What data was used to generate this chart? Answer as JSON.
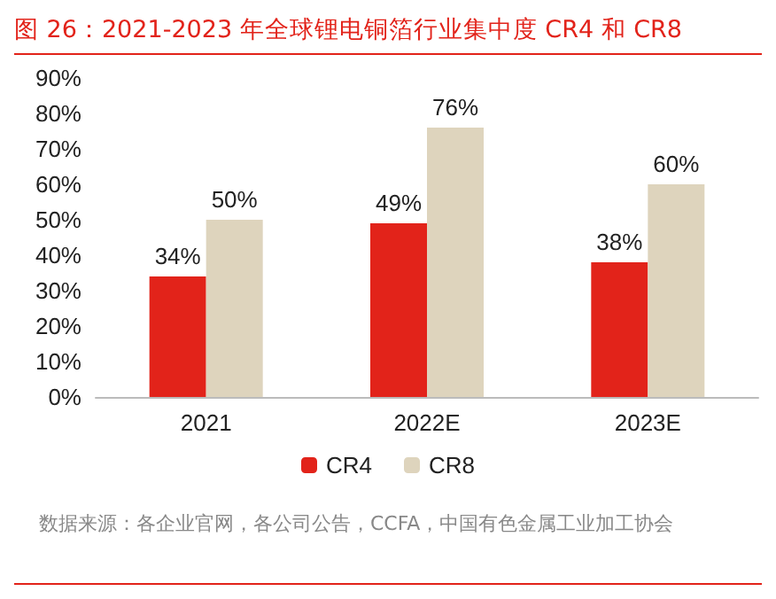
{
  "chart_data": {
    "type": "bar",
    "title": "图 26：2021-2023 年全球锂电铜箔行业集中度 CR4 和 CR8",
    "categories": [
      "2021",
      "2022E",
      "2023E"
    ],
    "series": [
      {
        "name": "CR4",
        "color": "#e2231a",
        "values": [
          34,
          49,
          38
        ],
        "value_labels": [
          "34%",
          "49%",
          "38%"
        ]
      },
      {
        "name": "CR8",
        "color": "#ded4bd",
        "values": [
          50,
          76,
          60
        ],
        "value_labels": [
          "50%",
          "76%",
          "60%"
        ]
      }
    ],
    "ylim": [
      0,
      90
    ],
    "yticks": [
      {
        "value": 0,
        "label": "0%"
      },
      {
        "value": 10,
        "label": "10%"
      },
      {
        "value": 20,
        "label": "20%"
      },
      {
        "value": 30,
        "label": "30%"
      },
      {
        "value": 40,
        "label": "40%"
      },
      {
        "value": 50,
        "label": "50%"
      },
      {
        "value": 60,
        "label": "60%"
      },
      {
        "value": 70,
        "label": "70%"
      },
      {
        "value": 80,
        "label": "80%"
      },
      {
        "value": 90,
        "label": "90%"
      }
    ],
    "grid": false,
    "legend": "bottom",
    "annotations": [
      "数据来源：各企业官网，各公司公告，CCFA，中国有色金属工业加工协会"
    ]
  }
}
